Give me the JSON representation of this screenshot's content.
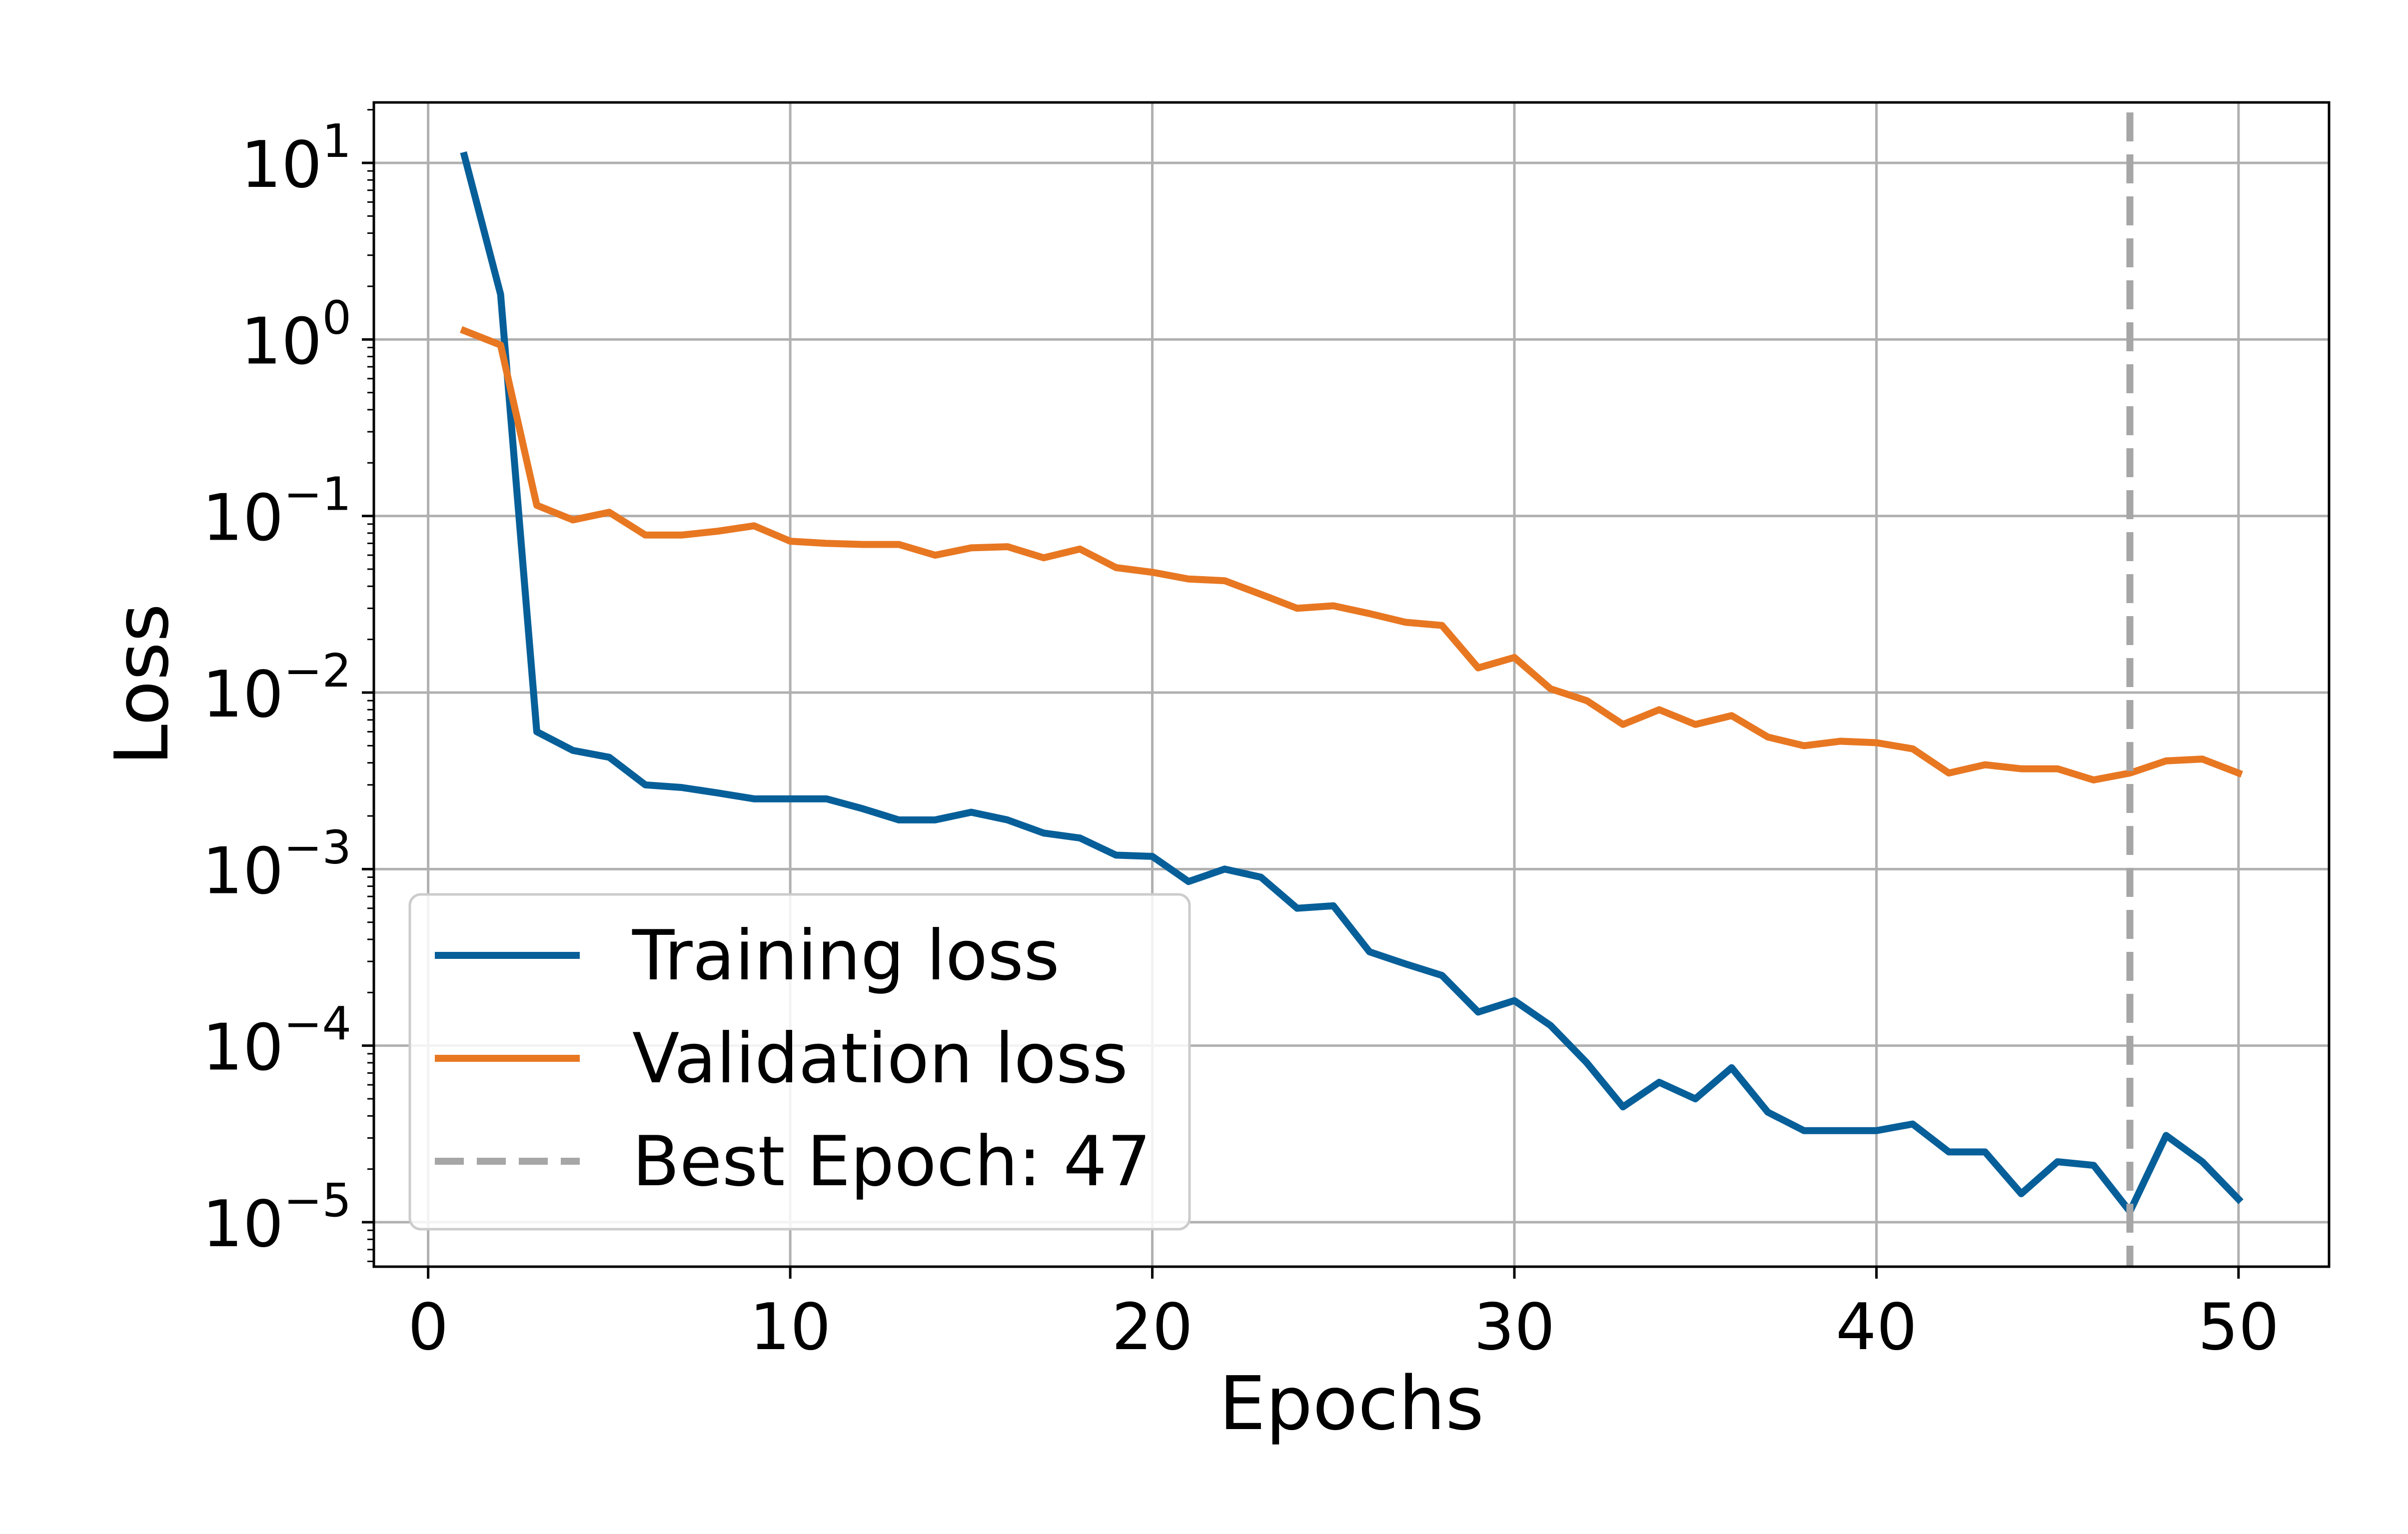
{
  "chart_data": {
    "type": "line",
    "xlabel": "Epochs",
    "ylabel": "Loss",
    "xlim": [
      -1.5,
      52.5
    ],
    "ylim": [
      5.6e-06,
      22.0
    ],
    "yscale": "log",
    "grid": true,
    "legend_position": "lower-left",
    "x_ticks": [
      0,
      10,
      20,
      30,
      40,
      50
    ],
    "y_ticks": [
      {
        "base": "10",
        "exp": "1",
        "value": 10
      },
      {
        "base": "10",
        "exp": "0",
        "value": 1
      },
      {
        "base": "10",
        "exp": "−1",
        "value": 0.1
      },
      {
        "base": "10",
        "exp": "−2",
        "value": 0.01
      },
      {
        "base": "10",
        "exp": "−3",
        "value": 0.001
      },
      {
        "base": "10",
        "exp": "−4",
        "value": 0.0001
      },
      {
        "base": "10",
        "exp": "−5",
        "value": 1e-05
      }
    ],
    "x": [
      1,
      2,
      3,
      4,
      5,
      6,
      7,
      8,
      9,
      10,
      11,
      12,
      13,
      14,
      15,
      16,
      17,
      18,
      19,
      20,
      21,
      22,
      23,
      24,
      25,
      26,
      27,
      28,
      29,
      30,
      31,
      32,
      33,
      34,
      35,
      36,
      37,
      38,
      39,
      40,
      41,
      42,
      43,
      44,
      45,
      46,
      47,
      48,
      49,
      50
    ],
    "series": [
      {
        "name": "Training loss",
        "color": "#075f99",
        "style": "solid",
        "values": [
          11,
          1.8,
          0.006,
          0.0047,
          0.0043,
          0.003,
          0.0029,
          0.0027,
          0.0025,
          0.0025,
          0.0025,
          0.0022,
          0.0019,
          0.0019,
          0.0021,
          0.0019,
          0.0016,
          0.0015,
          0.0012,
          0.00118,
          0.00085,
          0.001,
          0.0009,
          0.0006,
          0.00062,
          0.00034,
          0.00029,
          0.00025,
          0.000155,
          0.00018,
          0.00013,
          8e-05,
          4.5e-05,
          6.2e-05,
          5e-05,
          7.5e-05,
          4.2e-05,
          3.3e-05,
          3.3e-05,
          3.3e-05,
          3.6e-05,
          2.5e-05,
          2.5e-05,
          1.45e-05,
          2.2e-05,
          2.1e-05,
          1.15e-05,
          3.1e-05,
          2.2e-05,
          1.35e-05
        ]
      },
      {
        "name": "Validation loss",
        "color": "#e87722",
        "style": "solid",
        "values": [
          1.12,
          0.93,
          0.115,
          0.095,
          0.105,
          0.078,
          0.078,
          0.082,
          0.088,
          0.072,
          0.07,
          0.069,
          0.069,
          0.06,
          0.066,
          0.067,
          0.058,
          0.065,
          0.051,
          0.048,
          0.044,
          0.043,
          0.036,
          0.03,
          0.031,
          0.028,
          0.025,
          0.024,
          0.0138,
          0.0158,
          0.0105,
          0.009,
          0.0066,
          0.008,
          0.0066,
          0.0074,
          0.0056,
          0.005,
          0.0053,
          0.0052,
          0.0048,
          0.0035,
          0.0039,
          0.0037,
          0.0037,
          0.0032,
          0.0035,
          0.0041,
          0.0042,
          0.0035
        ]
      }
    ],
    "best_epoch_line": {
      "label": "Best Epoch: 47",
      "x": 47,
      "color": "#a6a6a6",
      "style": "dashed"
    }
  }
}
